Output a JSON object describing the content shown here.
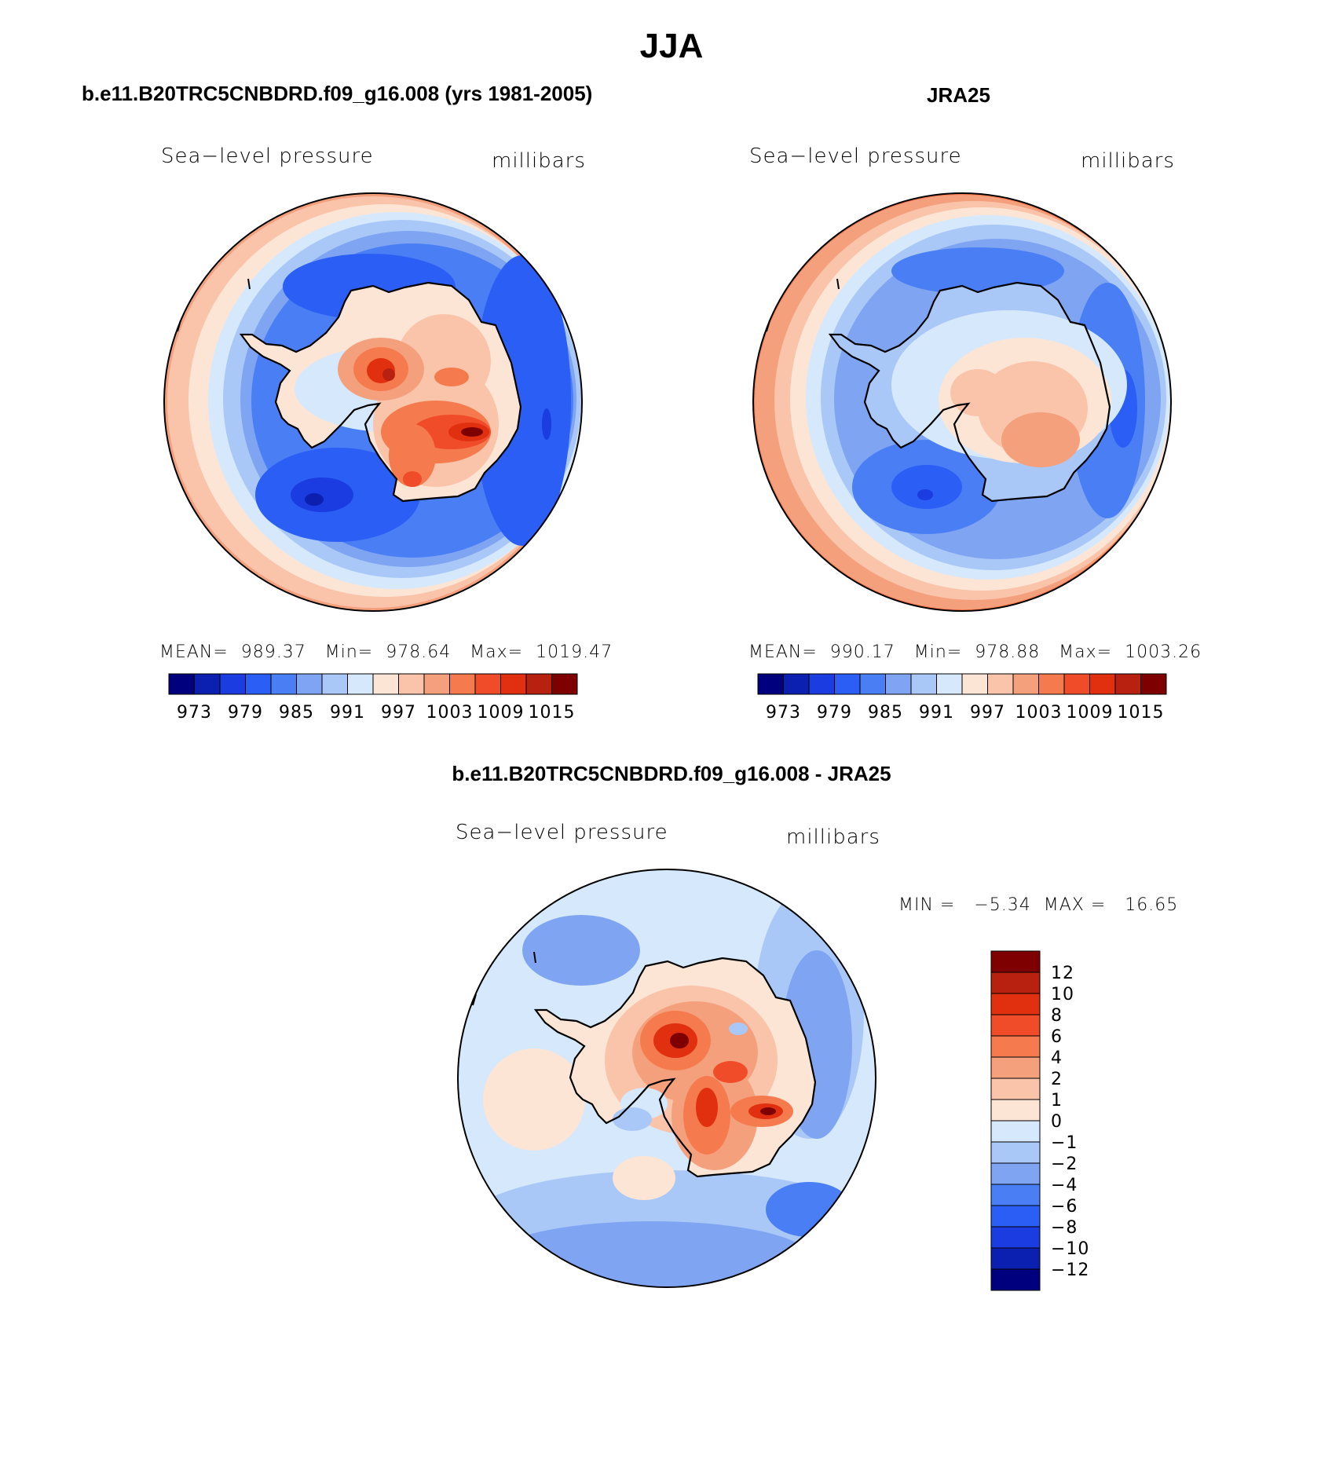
{
  "figure": {
    "title": "JJA",
    "colors": {
      "abs_scale": [
        "#00007f",
        "#0b1fb0",
        "#1a3ce0",
        "#2a5ef5",
        "#4a7ef5",
        "#7fa4f2",
        "#aac8f7",
        "#d6e8fb",
        "#fde5d6",
        "#f9c4aa",
        "#f5a07d",
        "#f57b4e",
        "#f04c2a",
        "#e03010",
        "#b82010",
        "#7f0000"
      ],
      "diff_scale": [
        "#7f0000",
        "#b82010",
        "#e03010",
        "#f04c2a",
        "#f57b4e",
        "#f5a07d",
        "#f9c4aa",
        "#fde5d6",
        "#d6e8fb",
        "#aac8f7",
        "#7fa4f2",
        "#4a7ef5",
        "#2a5ef5",
        "#1a3ce0",
        "#0b1fb0",
        "#00007f"
      ]
    },
    "icons": {
      "map_projection": "polar-stereographic-south",
      "coastline": "antarctica-coastline"
    }
  },
  "panels": [
    {
      "heading": "b.e11.B20TRC5CNBDRD.f09_g16.008 (yrs 1981-2005)",
      "variable": "Sea−level pressure",
      "units": "millibars",
      "stats": "MEAN=  989.37   Min=  978.64   Max=  1019.47",
      "colorbar_ticks": [
        "973",
        "979",
        "985",
        "991",
        "997",
        "1003",
        "1009",
        "1015"
      ]
    },
    {
      "heading": "JRA25",
      "variable": "Sea−level pressure",
      "units": "millibars",
      "stats": "MEAN=  990.17   Min=  978.88   Max=  1003.26",
      "colorbar_ticks": [
        "973",
        "979",
        "985",
        "991",
        "997",
        "1003",
        "1009",
        "1015"
      ]
    },
    {
      "heading": "b.e11.B20TRC5CNBDRD.f09_g16.008 - JRA25",
      "variable": "Sea−level pressure",
      "units": "millibars",
      "stats": "MIN =   −5.34  MAX =   16.65",
      "colorbar_ticks": [
        "12",
        "10",
        "8",
        "6",
        "4",
        "2",
        "1",
        "0",
        "−1",
        "−2",
        "−4",
        "−6",
        "−8",
        "−10",
        "−12"
      ]
    }
  ]
}
